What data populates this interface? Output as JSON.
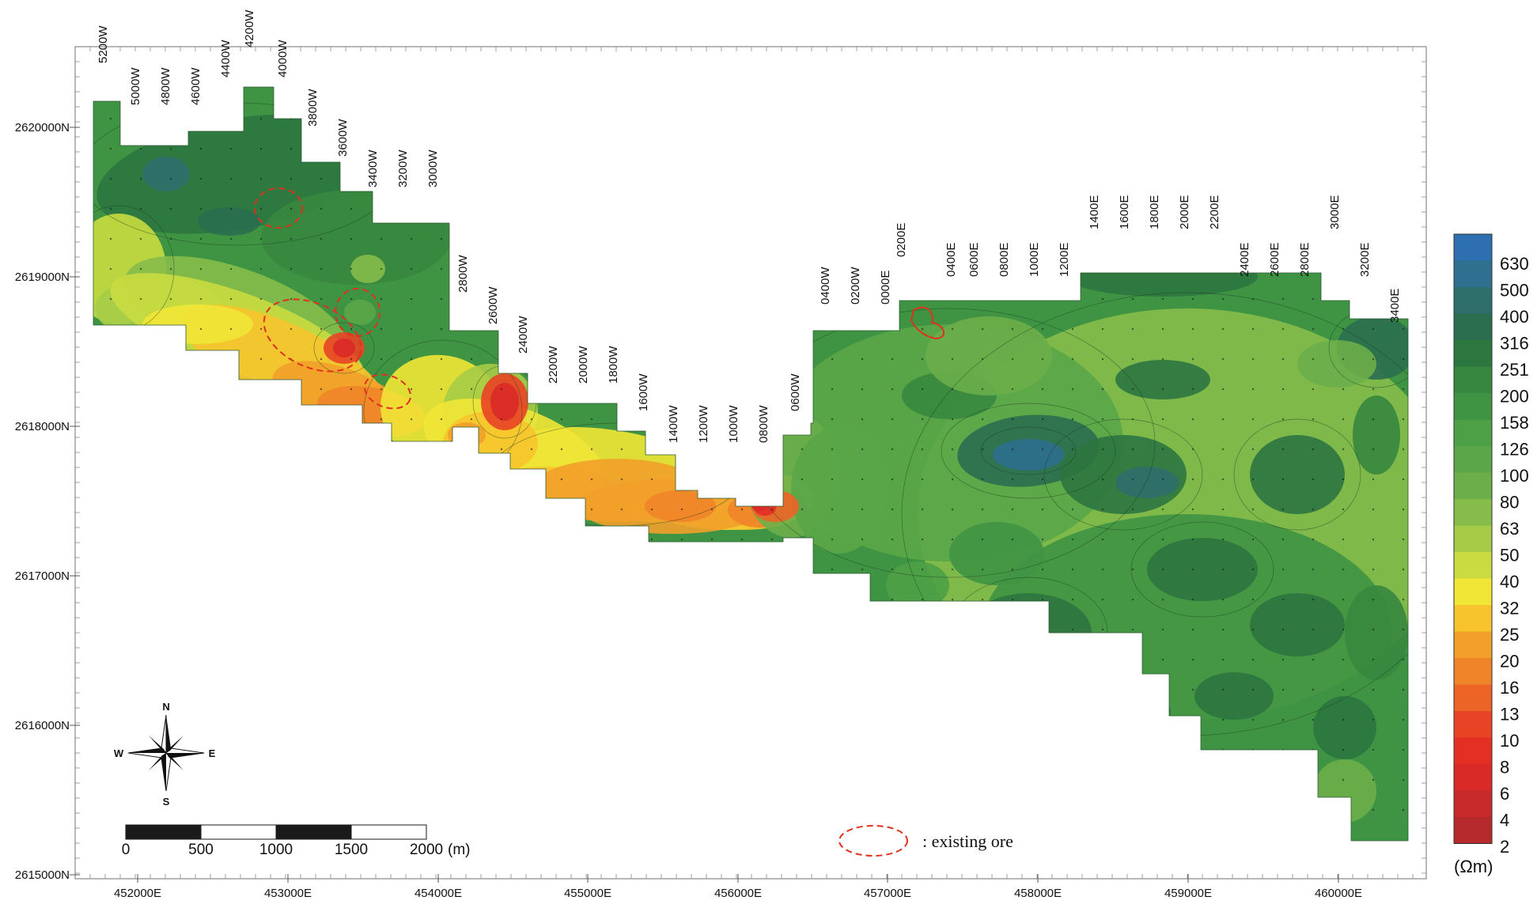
{
  "axes": {
    "y_labels": [
      "2620000N",
      "2619000N",
      "2618000N",
      "2617000N",
      "2616000N",
      "2615000N"
    ],
    "x_labels": [
      "452000E",
      "453000E",
      "454000E",
      "455000E",
      "456000E",
      "457000E",
      "458000E",
      "459000E",
      "460000E"
    ]
  },
  "survey_lines": [
    "5200W",
    "5000W",
    "4800W",
    "4600W",
    "4400W",
    "4200W",
    "4000W",
    "3800W",
    "3600W",
    "3400W",
    "3200W",
    "3000W",
    "2800W",
    "2600W",
    "2400W",
    "2200W",
    "2000W",
    "1800W",
    "1600W",
    "1400W",
    "1200W",
    "1000W",
    "0800W",
    "0600W",
    "0400W",
    "0200W",
    "0000E",
    "0200E",
    "0400E",
    "0600E",
    "0800E",
    "1000E",
    "1200E",
    "1400E",
    "1600E",
    "1800E",
    "2000E",
    "2200E",
    "2400E",
    "2600E",
    "2800E",
    "3000E",
    "3200E",
    "3400E"
  ],
  "legend": {
    "unit": "(Ωm)",
    "levels": [
      "630",
      "500",
      "400",
      "316",
      "251",
      "200",
      "158",
      "126",
      "100",
      "80",
      "63",
      "50",
      "40",
      "32",
      "25",
      "20",
      "16",
      "13",
      "10",
      "8",
      "6",
      "4",
      "2"
    ],
    "colors": [
      "#2d6fb0",
      "#2f6f8f",
      "#2e6f6c",
      "#2a6e4f",
      "#2c7640",
      "#37873f",
      "#3f9444",
      "#4ea046",
      "#5aa648",
      "#6bae4a",
      "#86bd4a",
      "#a6cc47",
      "#c9db40",
      "#f1e636",
      "#f7c42d",
      "#f2a02a",
      "#ef8428",
      "#ec6426",
      "#e94325",
      "#e42f25",
      "#d92a27",
      "#c8292a",
      "#b62a2d"
    ]
  },
  "scale_bar": {
    "ticks": [
      "0",
      "500",
      "1000",
      "1500",
      "2000"
    ],
    "unit": "(m)"
  },
  "compass": {
    "n": "N",
    "s": "S",
    "e": "E",
    "w": "W"
  },
  "ore_legend": {
    "label": ": existing ore"
  },
  "colors": {
    "background": "#ffffff",
    "frame": "#7d7d7d",
    "ore_outline": "#e0301e"
  }
}
